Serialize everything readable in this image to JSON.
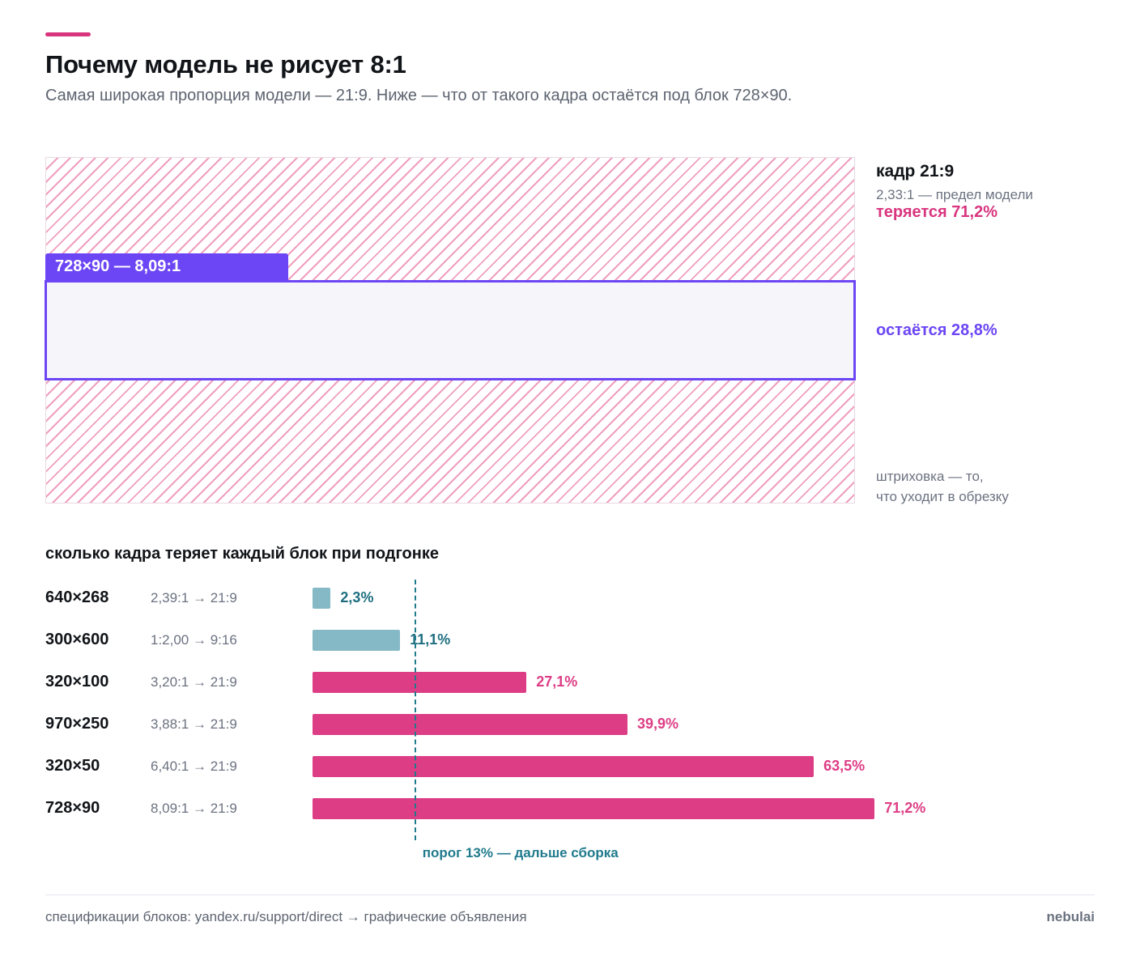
{
  "colors": {
    "accent": "#d9357f",
    "lost": "#d9357f",
    "kept": "#6c46f4",
    "hatch": "#ef9fbf",
    "bar_below": "#86b9c6",
    "bar_above": "#dd3d85",
    "value_below": "#1f6f80",
    "threshold": "#1f7a8c"
  },
  "header": {
    "title": "Почему модель не рисует 8:1",
    "subtitle": "Самая широкая пропорция модели — 21:9. Ниже — что от такого кадра остаётся под блок 728×90."
  },
  "frame": {
    "crop_tag": "728×90 — 8,09:1",
    "title": "кадр 21:9",
    "note": "2,33:1 — предел модели",
    "lost": "теряется 71,2%",
    "kept": "остаётся 28,8%",
    "legend_line1": "штриховка — то,",
    "legend_line2": "что уходит в обрезку"
  },
  "chart_data": {
    "type": "bar",
    "orientation": "horizontal",
    "title": "сколько кадра теряет каждый блок при подгонке",
    "categories": [
      "640×268",
      "300×600",
      "320×100",
      "970×250",
      "320×50",
      "728×90"
    ],
    "ratios": [
      "2,39:1 → 21:9",
      "1:2,00 → 9:16",
      "3,20:1 → 21:9",
      "3,88:1 → 21:9",
      "6,40:1 → 21:9",
      "8,09:1 → 21:9"
    ],
    "values": [
      2.3,
      11.1,
      27.1,
      39.9,
      63.5,
      71.2
    ],
    "value_labels": [
      "2,3%",
      "11,1%",
      "27,1%",
      "39,9%",
      "63,5%",
      "71,2%"
    ],
    "unit": "%",
    "threshold": 13,
    "threshold_label": "порог 13% — дальше сборка",
    "xlim": [
      0,
      100
    ],
    "grid": false
  },
  "footer": {
    "source": "спецификации блоков: yandex.ru/support/direct → графические объявления",
    "brand": "nebulai"
  }
}
